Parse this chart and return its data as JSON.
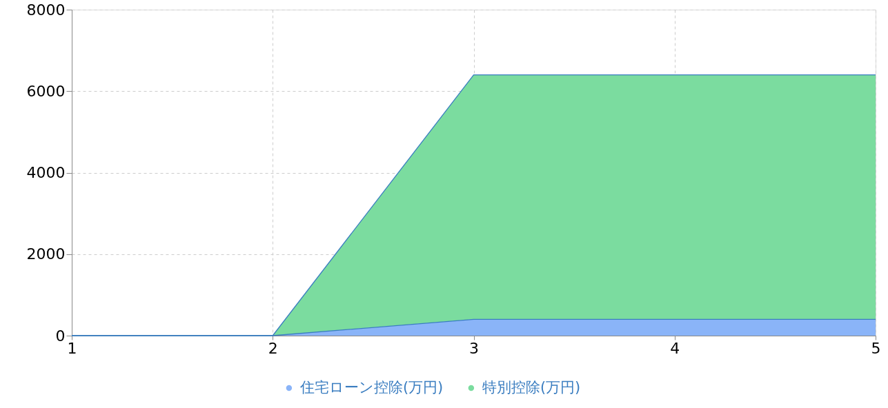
{
  "chart_data": {
    "type": "area",
    "stacked": true,
    "x": [
      1,
      2,
      3,
      4,
      5
    ],
    "xlim": [
      1,
      5
    ],
    "xticks": [
      1,
      2,
      3,
      4,
      5
    ],
    "ylim": [
      0,
      8000
    ],
    "yticks": [
      0,
      2000,
      4000,
      6000,
      8000
    ],
    "grid": true,
    "legend": "bottom",
    "series": [
      {
        "name": "住宅ローン控除(万円)",
        "color": "#8ab4f8",
        "values": [
          0,
          0,
          400,
          400,
          400
        ]
      },
      {
        "name": "特別控除(万円)",
        "color": "#7bdc9f",
        "values": [
          0,
          0,
          6000,
          6000,
          6000
        ]
      }
    ]
  }
}
